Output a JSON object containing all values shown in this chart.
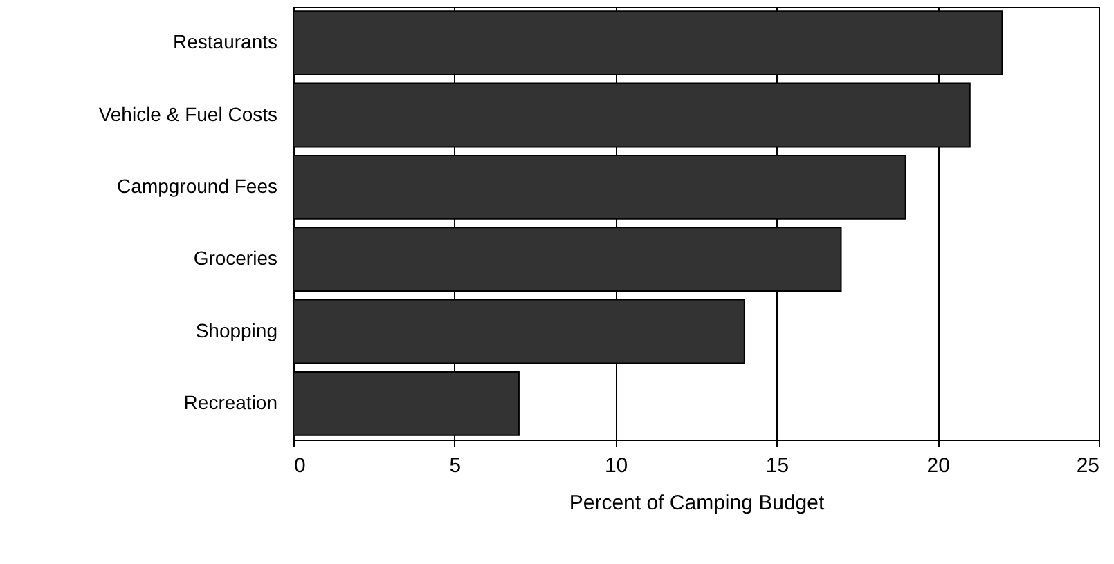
{
  "chart_data": {
    "type": "bar",
    "orientation": "horizontal",
    "xlabel": "Percent of Camping Budget",
    "categories": [
      "Restaurants",
      "Vehicle & Fuel Costs",
      "Campground Fees",
      "Groceries",
      "Shopping",
      "Recreation"
    ],
    "values": [
      22,
      21,
      19,
      17,
      14,
      7
    ],
    "color": "#333333",
    "xlim": [
      0,
      25
    ],
    "xticks": [
      0,
      5,
      10,
      15,
      20,
      25
    ],
    "grid": "x"
  }
}
